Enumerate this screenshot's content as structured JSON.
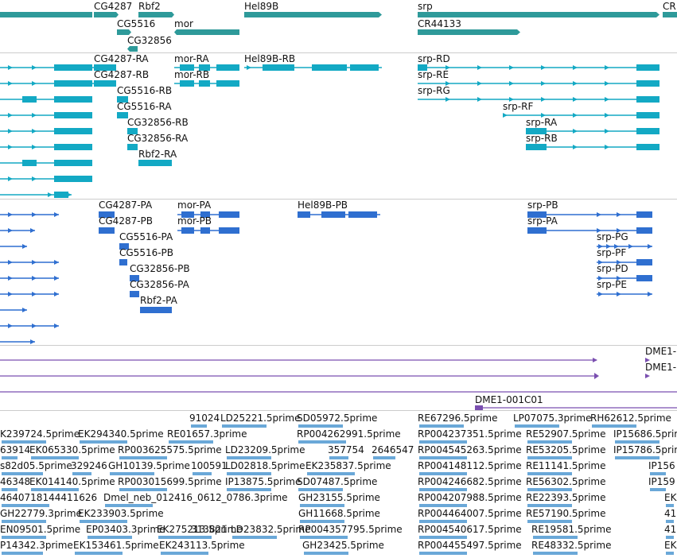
{
  "colors": {
    "gene": "#2e9a9a",
    "transcript": "#13a9c4",
    "protein": "#2f6fd0",
    "contig": "#7a4fb0",
    "est": "#6aa8d8",
    "separator": "#cccccc"
  },
  "gene_track": {
    "labels": [
      "CG4287",
      "Rbf2",
      "Hel89B",
      "srp",
      "CR",
      "CG5516",
      "mor",
      "CR44133",
      "CG32856"
    ]
  },
  "transcript_track": {
    "labels": [
      "CG4287-RA",
      "mor-RA",
      "Hel89B-RB",
      "srp-RD",
      "CG4287-RB",
      "mor-RB",
      "srp-RE",
      "CG5516-RB",
      "srp-RG",
      "CG5516-RA",
      "srp-RF",
      "CG32856-RB",
      "srp-RA",
      "CG32856-RA",
      "srp-RB",
      "Rbf2-RA"
    ]
  },
  "protein_track": {
    "labels": [
      "CG4287-PA",
      "mor-PA",
      "Hel89B-PB",
      "srp-PB",
      "CG4287-PB",
      "mor-PB",
      "srp-PA",
      "CG5516-PA",
      "srp-PG",
      "CG5516-PB",
      "srp-PF",
      "CG32856-PB",
      "srp-PD",
      "CG32856-PA",
      "srp-PE",
      "Rbf2-PA"
    ]
  },
  "contig_track": {
    "labels": [
      "DME1-",
      "DME1-",
      "DME1-001C01"
    ]
  },
  "est_track": {
    "labels": [
      "91024",
      "LD25221.5prime",
      "SD05972.5prime",
      "RE67296.5prime",
      "LP07075.3prime",
      "RH62612.5prime",
      "K239724.5prime",
      "EK294340.5prime",
      "RE01657.3prime",
      "RP004262991.5prime",
      "RP004237351.5prime",
      "RE52907.5prime",
      "IP15686.5prime",
      "63914",
      "EK065330.5prime",
      "RP003625575.5prime",
      "LD23209.5prime",
      "357754",
      "2646547",
      "RP004545263.5prime",
      "RE53205.5prime",
      "IP15786.5prime",
      "s82d05.5prime",
      "329246",
      "GH10139.5prime",
      "100591",
      "LD02818.5prime",
      "EK235837.5prime",
      "RP004148112.5prime",
      "RE11141.5prime",
      "IP156",
      "46348",
      "EK014140.5prime",
      "RP003015699.5prime",
      "IP13875.5prime",
      "SD07487.5prime",
      "RP004246682.5prime",
      "RE56302.5prime",
      "IP159",
      "4640718144411626",
      "Dmel_neb_012416_0612_0786.3prime",
      "GH23155.5prime",
      "RP004207988.5prime",
      "RE22393.5prime",
      "EK",
      "GH22779.3prime",
      "EK233903.5prime",
      "GH11668.5prime",
      "RP004464007.5prime",
      "RE57190.5prime",
      "41",
      "EN09501.5prime",
      "EP03403.3prime",
      "EK275213.5prime",
      "313821",
      "LD23832.5prime",
      "RP004357795.5prime",
      "RP004540617.5prime",
      "RE19581.5prime",
      "41",
      "P14342.3prime",
      "EK153461.5prime",
      "EK243113.5prime",
      "GH23425.5prime",
      "RP004455497.5prime",
      "RE48332.5prime",
      "EK"
    ]
  }
}
